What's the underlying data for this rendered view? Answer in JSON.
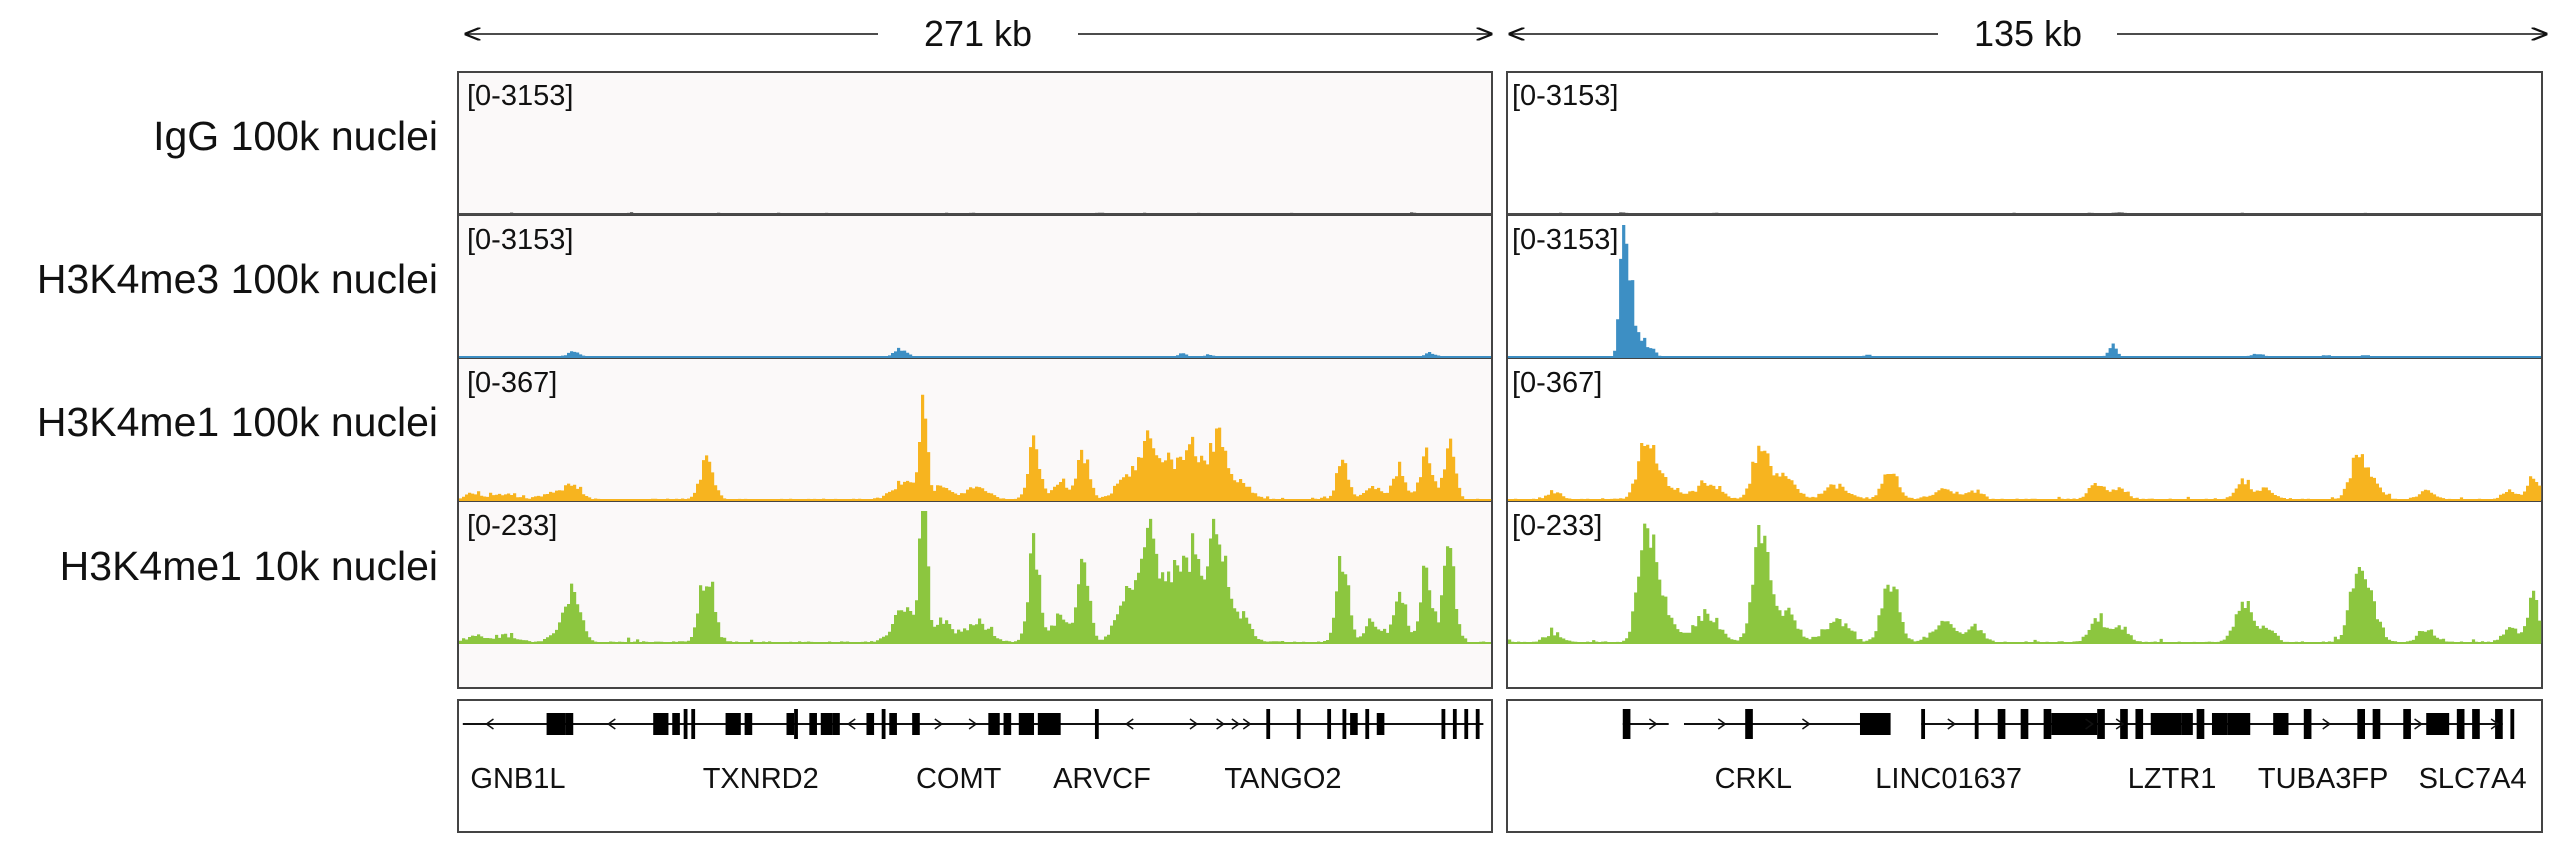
{
  "chart_data": {
    "type": "genome-tracks",
    "track_colors": {
      "igg": "#4a4a4a",
      "h3k4me3": "#3d8fc4",
      "h3k4me1_100k": "#f7b41f",
      "h3k4me1_10k": "#8cc63f"
    },
    "track_labels": [
      "IgG 100k nuclei",
      "H3K4me3 100k nuclei",
      "H3K4me1 100k nuclei",
      "H3K4me1 10k nuclei"
    ],
    "panels": [
      {
        "scale": "271 kb",
        "domain": [
          0,
          271
        ],
        "tracks": [
          {
            "key": "igg",
            "range": "[0-3153]",
            "max": 3153,
            "peaks": [
              [
                14,
                30,
                0.6
              ],
              [
                45,
                35,
                0.8
              ],
              [
                68,
                30,
                0.8
              ],
              [
                128,
                40,
                0.5
              ],
              [
                135,
                30,
                1.2
              ],
              [
                168,
                30,
                0.7
              ],
              [
                180,
                30,
                0.8
              ],
              [
                219,
                30,
                0.6
              ],
              [
                250,
                30,
                0.5
              ]
            ],
            "noise": 25,
            "base": 6
          },
          {
            "key": "h3k4me3",
            "range": "[0-3153]",
            "max": 3153,
            "peaks": [
              [
                30,
                150,
                1.5
              ],
              [
                116,
                200,
                1.7
              ],
              [
                190,
                80,
                1.2
              ],
              [
                197,
                60,
                1.1
              ],
              [
                255,
                110,
                1.4
              ]
            ],
            "noise": 12,
            "base": 3
          },
          {
            "key": "h3k4me1_100k",
            "range": "[0-367]",
            "max": 367,
            "peaks": [
              [
                4,
                18,
                2
              ],
              [
                12,
                15,
                3
              ],
              [
                25,
                18,
                3
              ],
              [
                30,
                40,
                2
              ],
              [
                65,
                110,
                1.8
              ],
              [
                117,
                55,
                3
              ],
              [
                122,
                315,
                0.9
              ],
              [
                127,
                45,
                2
              ],
              [
                136,
                35,
                3
              ],
              [
                151,
                160,
                1.5
              ],
              [
                158,
                60,
                2
              ],
              [
                164,
                140,
                1.5
              ],
              [
                176,
                75,
                3
              ],
              [
                181,
                150,
                2
              ],
              [
                187,
                110,
                3
              ],
              [
                193,
                150,
                2
              ],
              [
                199,
                170,
                2
              ],
              [
                204,
                60,
                3
              ],
              [
                232,
                110,
                1.5
              ],
              [
                240,
                35,
                2
              ],
              [
                247,
                95,
                1.6
              ],
              [
                254,
                135,
                1.5
              ],
              [
                260,
                150,
                1.5
              ]
            ],
            "noise": 10,
            "base": 4
          },
          {
            "key": "h3k4me1_10k",
            "range": "[0-233]",
            "max": 233,
            "peaks": [
              [
                4,
                14,
                2
              ],
              [
                12,
                12,
                3
              ],
              [
                28,
                25,
                3
              ],
              [
                30,
                75,
                2
              ],
              [
                65,
                140,
                1.8
              ],
              [
                117,
                60,
                3
              ],
              [
                122,
                300,
                0.9
              ],
              [
                127,
                45,
                2
              ],
              [
                136,
                40,
                3
              ],
              [
                151,
                180,
                1.5
              ],
              [
                158,
                55,
                2
              ],
              [
                164,
                140,
                1.5
              ],
              [
                176,
                90,
                3
              ],
              [
                181,
                170,
                2
              ],
              [
                187,
                130,
                3
              ],
              [
                193,
                165,
                2
              ],
              [
                199,
                205,
                2
              ],
              [
                204,
                60,
                3
              ],
              [
                232,
                160,
                1.5
              ],
              [
                240,
                40,
                2
              ],
              [
                247,
                110,
                1.6
              ],
              [
                254,
                150,
                1.5
              ],
              [
                260,
                170,
                1.5
              ]
            ],
            "noise": 8,
            "base": 3
          }
        ],
        "genes": [
          {
            "name": "GNB1L",
            "label_x": 3
          },
          {
            "name": "TXNRD2",
            "label_x": 64
          },
          {
            "name": "COMT",
            "label_x": 120
          },
          {
            "name": "ARVCF",
            "label_x": 156
          },
          {
            "name": "TANGO2",
            "label_x": 201
          }
        ],
        "gene_lines": [
          [
            1,
            269
          ]
        ],
        "exons": [
          [
            23,
            5
          ],
          [
            28,
            2
          ],
          [
            51,
            4
          ],
          [
            56,
            2
          ],
          [
            59,
            1
          ],
          [
            61,
            1
          ],
          [
            70,
            4
          ],
          [
            75,
            2
          ],
          [
            86,
            2
          ],
          [
            88,
            1
          ],
          [
            92,
            2
          ],
          [
            95,
            3
          ],
          [
            98,
            2
          ],
          [
            107,
            2
          ],
          [
            111,
            1
          ],
          [
            113,
            2
          ],
          [
            119,
            2
          ],
          [
            139,
            3
          ],
          [
            143,
            2
          ],
          [
            147,
            4
          ],
          [
            152,
            6
          ],
          [
            167,
            1
          ],
          [
            212,
            1
          ],
          [
            220,
            1
          ],
          [
            228,
            1
          ],
          [
            232,
            1
          ],
          [
            234,
            2
          ],
          [
            238,
            1
          ],
          [
            241,
            2
          ],
          [
            258,
            1
          ],
          [
            261,
            1
          ],
          [
            264,
            1
          ],
          [
            267,
            1
          ]
        ],
        "arrows": [
          [
            8,
            "<"
          ],
          [
            40,
            "<"
          ],
          [
            103,
            "<"
          ],
          [
            126,
            ">"
          ],
          [
            135,
            ">"
          ],
          [
            176,
            "<"
          ],
          [
            193,
            ">"
          ],
          [
            200,
            ">"
          ],
          [
            204,
            ">"
          ],
          [
            207,
            ">"
          ]
        ]
      },
      {
        "scale": "135 kb",
        "domain": [
          0,
          135
        ],
        "tracks": [
          {
            "key": "igg",
            "range": "[0-3153]",
            "max": 3153,
            "peaks": [
              [
                7,
                25,
                0.5
              ],
              [
                15,
                40,
                0.6
              ],
              [
                27,
                25,
                0.5
              ],
              [
                37,
                25,
                0.5
              ],
              [
                66,
                30,
                0.6
              ],
              [
                76,
                25,
                0.5
              ],
              [
                80,
                45,
                0.6
              ],
              [
                96,
                25,
                0.5
              ],
              [
                112,
                25,
                0.5
              ]
            ],
            "noise": 20,
            "base": 6
          },
          {
            "key": "h3k4me3",
            "range": "[0-3153]",
            "max": 3153,
            "peaks": [
              [
                15,
                2700,
                0.45
              ],
              [
                16,
                1800,
                0.5
              ],
              [
                17.5,
                500,
                0.6
              ],
              [
                19,
                150,
                0.5
              ],
              [
                47,
                60,
                0.5
              ],
              [
                79,
                300,
                0.5
              ],
              [
                98,
                80,
                0.8
              ],
              [
                107,
                50,
                0.6
              ],
              [
                112,
                60,
                0.5
              ]
            ],
            "noise": 10,
            "base": 3
          },
          {
            "key": "h3k4me1_100k",
            "range": "[0-367]",
            "max": 367,
            "peaks": [
              [
                6,
                20,
                1
              ],
              [
                18,
                170,
                1
              ],
              [
                20,
                60,
                1.5
              ],
              [
                26,
                50,
                1.5
              ],
              [
                33,
                150,
                1
              ],
              [
                36,
                60,
                1.5
              ],
              [
                43,
                40,
                1.5
              ],
              [
                50,
                90,
                1
              ],
              [
                57,
                30,
                1.5
              ],
              [
                61,
                25,
                1
              ],
              [
                77,
                45,
                1
              ],
              [
                80,
                30,
                1
              ],
              [
                96,
                55,
                1
              ],
              [
                99,
                30,
                1
              ],
              [
                111,
                120,
                1
              ],
              [
                113,
                55,
                1
              ],
              [
                120,
                25,
                1
              ],
              [
                131,
                25,
                1
              ],
              [
                134,
                70,
                0.7
              ]
            ],
            "noise": 8,
            "base": 4
          },
          {
            "key": "h3k4me1_10k",
            "range": "[0-233]",
            "max": 233,
            "peaks": [
              [
                6,
                18,
                1
              ],
              [
                18,
                210,
                1
              ],
              [
                20,
                70,
                1.5
              ],
              [
                26,
                55,
                1.5
              ],
              [
                33,
                195,
                1
              ],
              [
                36,
                60,
                1.5
              ],
              [
                43,
                45,
                1.5
              ],
              [
                50,
                120,
                1
              ],
              [
                57,
                35,
                1.5
              ],
              [
                61,
                30,
                1
              ],
              [
                77,
                50,
                1
              ],
              [
                80,
                30,
                1
              ],
              [
                96,
                80,
                1
              ],
              [
                99,
                30,
                1
              ],
              [
                111,
                140,
                1
              ],
              [
                113,
                60,
                1
              ],
              [
                120,
                25,
                1
              ],
              [
                131,
                25,
                1
              ],
              [
                134,
                90,
                0.7
              ]
            ],
            "noise": 7,
            "base": 3
          }
        ],
        "genes": [
          {
            "name": "CRKL",
            "label_x": 27
          },
          {
            "name": "LINC01637",
            "label_x": 48
          },
          {
            "name": "LZTR1",
            "label_x": 81
          },
          {
            "name": "TUBA3FP",
            "label_x": 98
          },
          {
            "name": "SLC7A4",
            "label_x": 119
          }
        ],
        "gene_lines": [
          [
            15,
            21
          ],
          [
            23,
            46
          ],
          [
            54,
            130
          ]
        ],
        "exons": [
          [
            15,
            1
          ],
          [
            31,
            1
          ],
          [
            46,
            4
          ],
          [
            54,
            0.5
          ],
          [
            61,
            0.5
          ],
          [
            64,
            1
          ],
          [
            67,
            1
          ],
          [
            70,
            1
          ],
          [
            71,
            6
          ],
          [
            77,
            1
          ],
          [
            80,
            1
          ],
          [
            82,
            1
          ],
          [
            84,
            4
          ],
          [
            88,
            1.5
          ],
          [
            90,
            1
          ],
          [
            92,
            2
          ],
          [
            94,
            3
          ],
          [
            100,
            2
          ],
          [
            104,
            1
          ],
          [
            111,
            1
          ],
          [
            113,
            1
          ],
          [
            117,
            1
          ],
          [
            120,
            3
          ],
          [
            124,
            1
          ],
          [
            126,
            1
          ],
          [
            129,
            1
          ],
          [
            131,
            0.5
          ]
        ],
        "arrows": [
          [
            19,
            ">"
          ],
          [
            28,
            ">"
          ],
          [
            39,
            ">"
          ],
          [
            58,
            ">"
          ],
          [
            76,
            ">"
          ],
          [
            80,
            ">"
          ],
          [
            107,
            ">"
          ],
          [
            119,
            ">"
          ],
          [
            129,
            ">"
          ]
        ]
      }
    ]
  }
}
